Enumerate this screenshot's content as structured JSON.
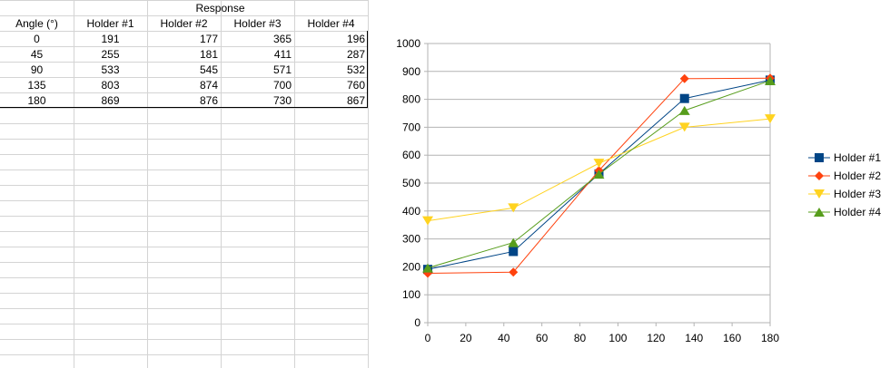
{
  "table": {
    "group_header": "Response",
    "columns": [
      "Angle (°)",
      "Holder #1",
      "Holder #2",
      "Holder #3",
      "Holder #4"
    ],
    "rows": [
      [
        "0",
        "191",
        "177",
        "365",
        "196"
      ],
      [
        "45",
        "255",
        "181",
        "411",
        "287"
      ],
      [
        "90",
        "533",
        "545",
        "571",
        "532"
      ],
      [
        "135",
        "803",
        "874",
        "700",
        "760"
      ],
      [
        "180",
        "869",
        "876",
        "730",
        "867"
      ]
    ]
  },
  "chart_data": {
    "type": "line",
    "x": [
      0,
      45,
      90,
      135,
      180
    ],
    "xlim": [
      0,
      180
    ],
    "ylim": [
      0,
      1000
    ],
    "x_ticks": [
      "0",
      "20",
      "40",
      "60",
      "80",
      "100",
      "120",
      "140",
      "160",
      "180"
    ],
    "y_ticks": [
      "0",
      "100",
      "200",
      "300",
      "400",
      "500",
      "600",
      "700",
      "800",
      "900",
      "1000"
    ],
    "grid": "horizontal",
    "legend_position": "right",
    "series": [
      {
        "name": "Holder #1",
        "values": [
          191,
          255,
          533,
          803,
          869
        ],
        "color": "#004586",
        "marker": "square"
      },
      {
        "name": "Holder #2",
        "values": [
          177,
          181,
          545,
          874,
          876
        ],
        "color": "#ff420e",
        "marker": "diamond"
      },
      {
        "name": "Holder #3",
        "values": [
          365,
          411,
          571,
          700,
          730
        ],
        "color": "#ffd320",
        "marker": "triangle-down"
      },
      {
        "name": "Holder #4",
        "values": [
          196,
          287,
          532,
          760,
          867
        ],
        "color": "#579d1c",
        "marker": "triangle-up"
      }
    ]
  }
}
